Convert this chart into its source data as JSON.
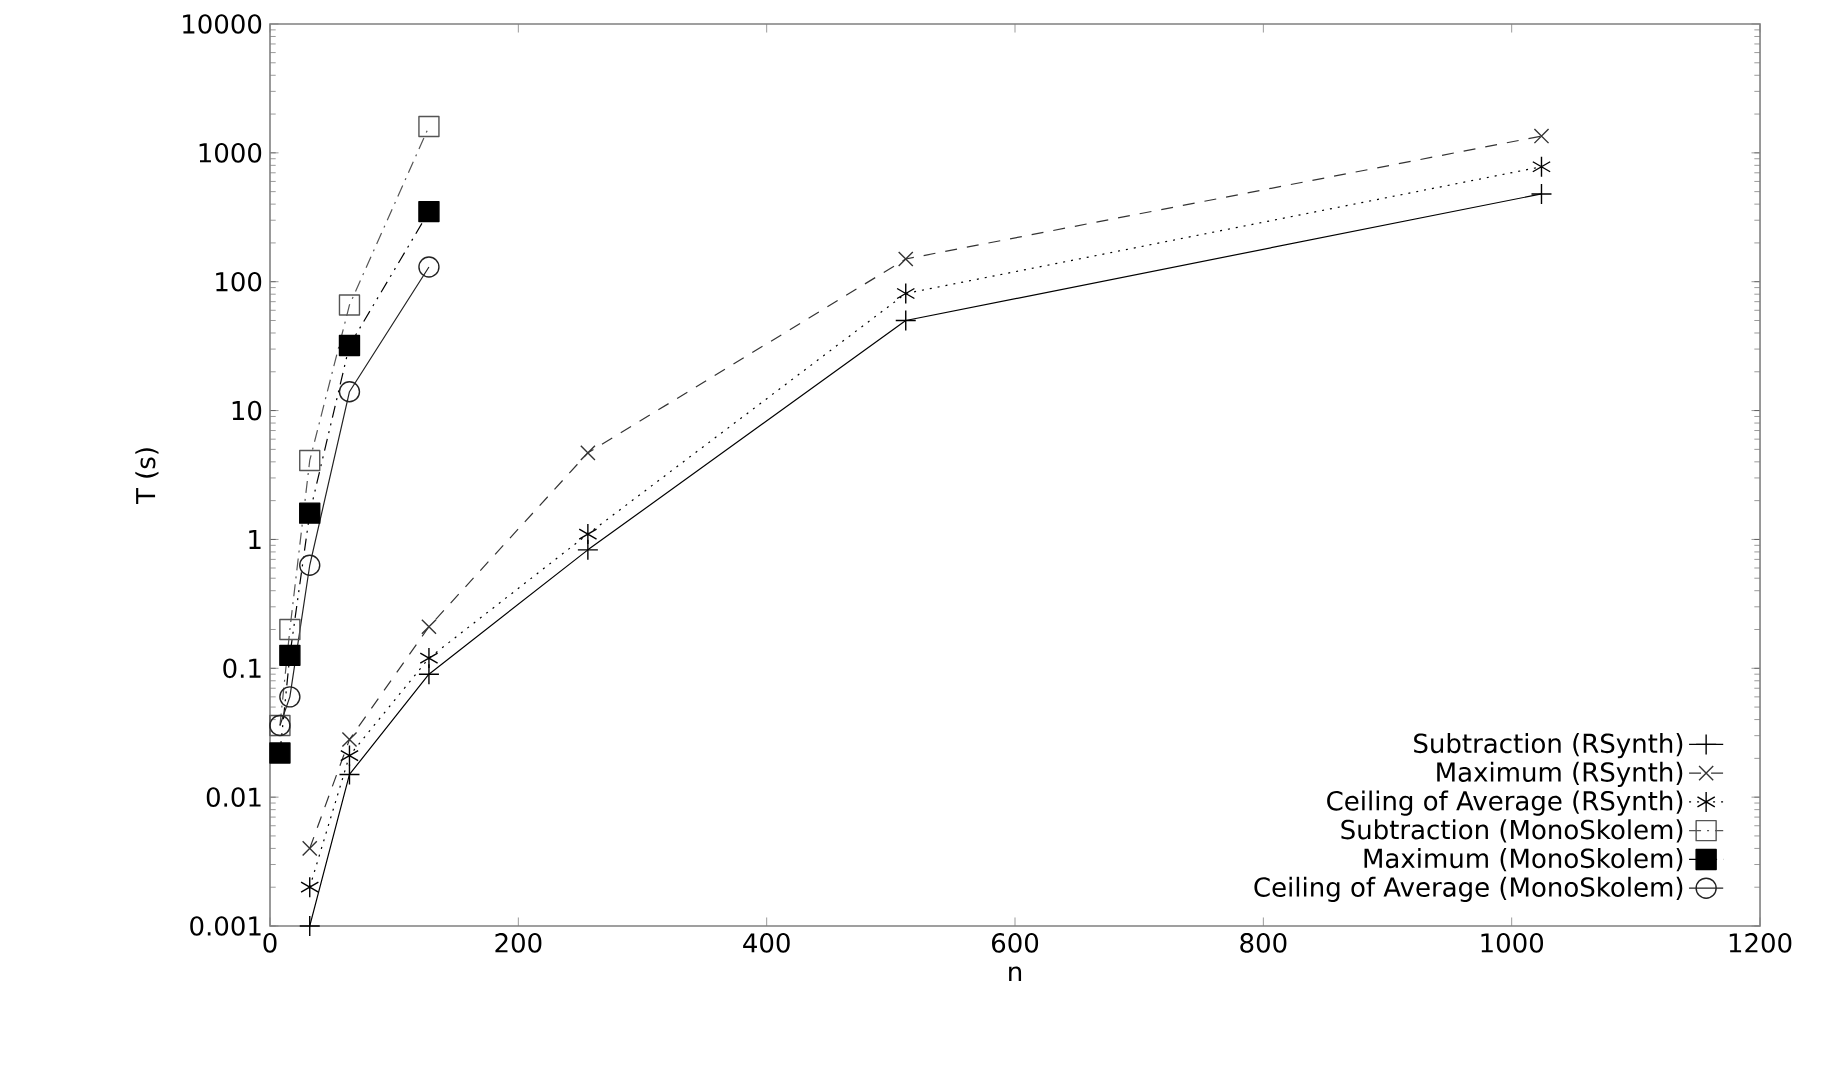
{
  "chart_data": {
    "type": "line",
    "xlabel": "n",
    "ylabel": "T (s)",
    "log": "y",
    "xlim": [
      0,
      1200
    ],
    "xticks": [
      0,
      200,
      400,
      600,
      800,
      1000,
      1200
    ],
    "ylim": [
      0.001,
      10000
    ],
    "yticks": [
      0.001,
      0.01,
      0.1,
      1,
      10,
      100,
      1000,
      10000
    ],
    "legend": "bottom right",
    "grid": false,
    "series": [
      {
        "name": "Subtraction (RSynth)",
        "color": "#000000",
        "marker": "cross",
        "line_style": "solid",
        "x": [
          32,
          64,
          128,
          256,
          512,
          1024
        ],
        "values": [
          0.001,
          0.015,
          0.09,
          0.83,
          50,
          480
        ]
      },
      {
        "name": "Maximum (RSynth)",
        "color": "#333333",
        "marker": "cross",
        "line_style": "dashed",
        "x": [
          32,
          64,
          128,
          256,
          512,
          1024
        ],
        "values": [
          0.004,
          0.028,
          0.21,
          4.7,
          150,
          1350
        ]
      },
      {
        "name": "Ceiling of Average (RSynth)",
        "color": "#000000",
        "marker": "cross",
        "line_style": "dotted",
        "x": [
          32,
          64,
          128,
          256,
          512,
          1024
        ],
        "values": [
          0.002,
          0.021,
          0.12,
          1.1,
          81,
          780
        ]
      },
      {
        "name": "Subtraction (MonoSkolem)",
        "color": "#555555",
        "marker": "square",
        "line_style": "dashdot",
        "x": [
          8,
          16,
          32,
          64,
          128
        ],
        "values": [
          0.036,
          0.2,
          4.1,
          66,
          1600
        ]
      },
      {
        "name": "Maximum (MonoSkolem)",
        "color": "#000000",
        "marker": "square",
        "line_style": "dashdotdot",
        "x": [
          8,
          16,
          32,
          64,
          128
        ],
        "values": [
          0.022,
          0.126,
          1.6,
          32,
          350
        ]
      },
      {
        "name": "Ceiling of Average (MonoSkolem)",
        "color": "#222222",
        "marker": "circle",
        "line_style": "solid",
        "x": [
          8,
          16,
          32,
          64,
          128
        ],
        "values": [
          0.036,
          0.06,
          0.63,
          14,
          130
        ]
      }
    ]
  }
}
